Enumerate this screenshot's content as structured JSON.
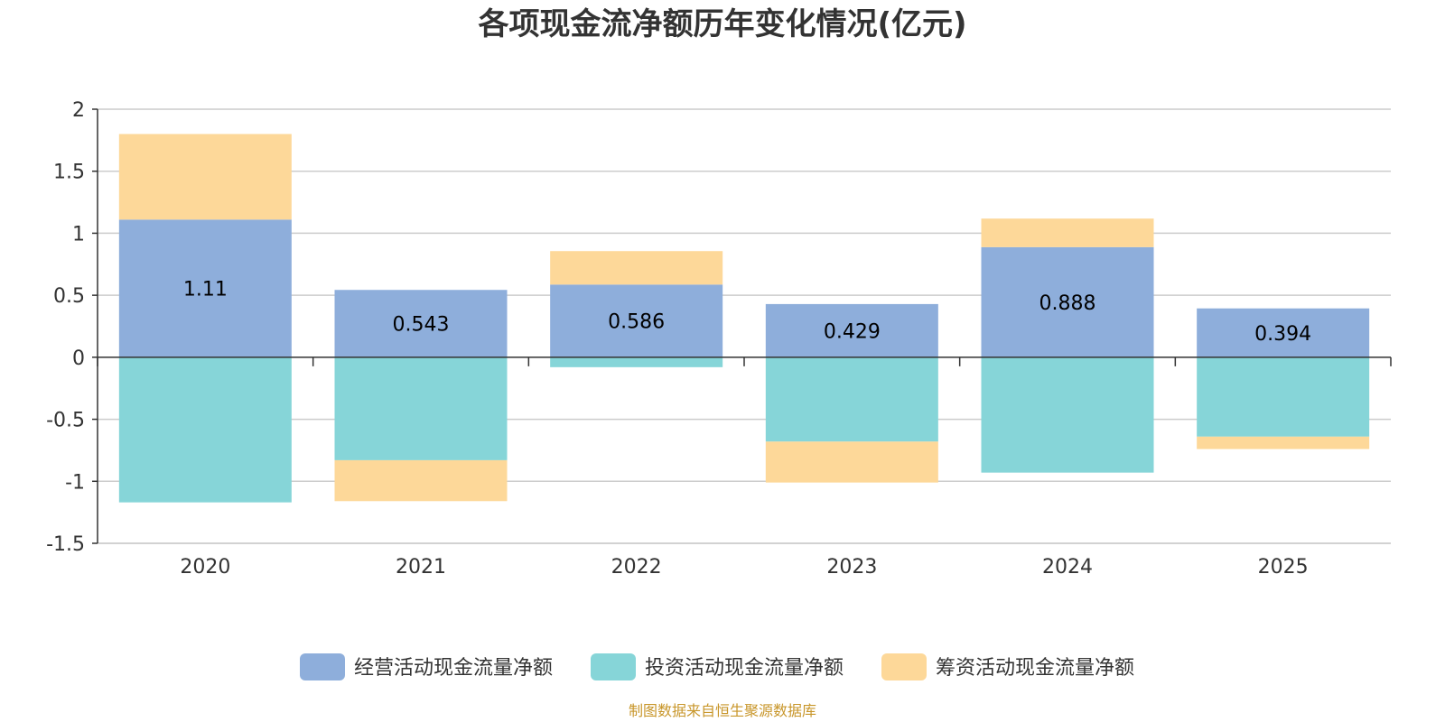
{
  "chart_data": {
    "type": "bar",
    "stacked": true,
    "title": "各项现金流净额历年变化情况(亿元)",
    "categories": [
      "2020",
      "2021",
      "2022",
      "2023",
      "2024",
      "2025"
    ],
    "ylim": [
      -1.5,
      2
    ],
    "yticks": [
      "2",
      "1.5",
      "1",
      "0.5",
      "0",
      "-0.5",
      "-1",
      "-1.5"
    ],
    "ytick_values": [
      2,
      1.5,
      1,
      0.5,
      0,
      -0.5,
      -1,
      -1.5
    ],
    "grid": true,
    "legend_position": "bottom",
    "series": [
      {
        "name": "经营活动现金流量净额",
        "color": "#8eaedb",
        "values": [
          1.11,
          0.543,
          0.586,
          0.429,
          0.888,
          0.394
        ],
        "labels": [
          "1.11",
          "0.543",
          "0.586",
          "0.429",
          "0.888",
          "0.394"
        ]
      },
      {
        "name": "投资活动现金流量净额",
        "color": "#86d5d8",
        "values": [
          -1.17,
          -0.83,
          -0.08,
          -0.68,
          -0.93,
          -0.64
        ]
      },
      {
        "name": "筹资活动现金流量净额",
        "color": "#fdd899",
        "values": [
          0.69,
          -0.33,
          0.27,
          -0.33,
          0.23,
          -0.1
        ]
      }
    ]
  },
  "source_note": "制图数据来自恒生聚源数据库"
}
